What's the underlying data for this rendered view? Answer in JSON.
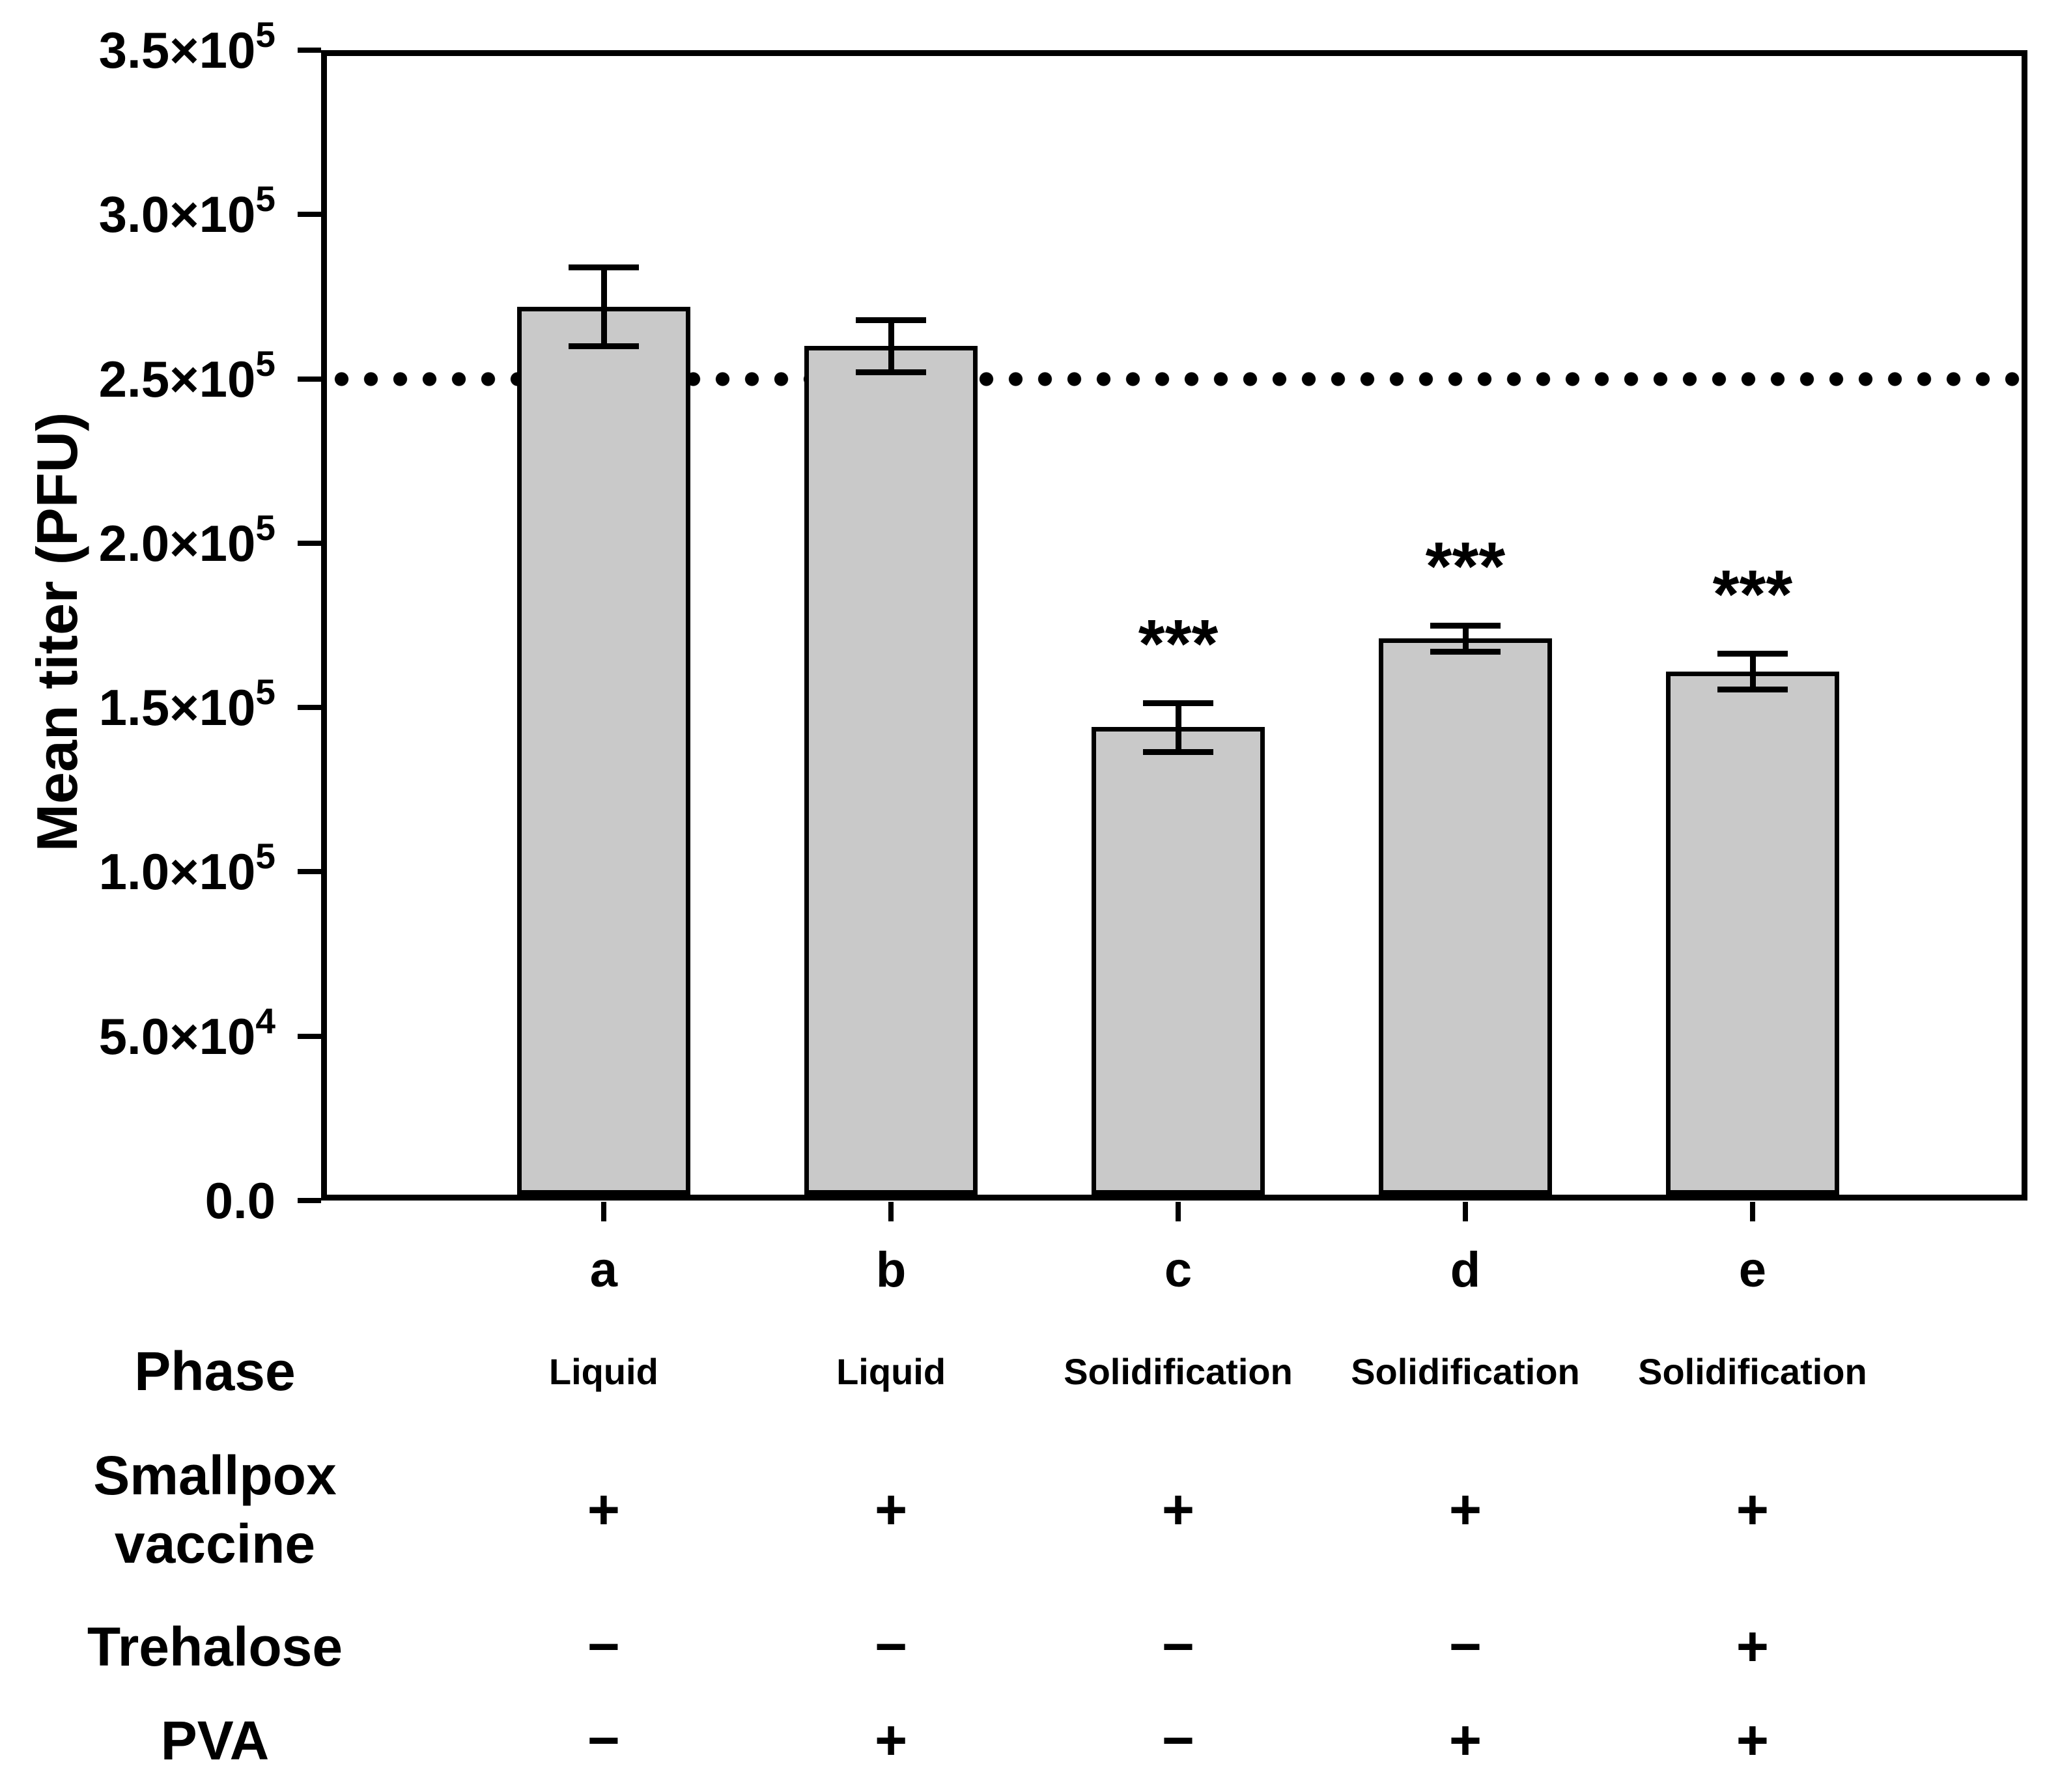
{
  "chart_data": {
    "type": "bar",
    "title": "",
    "ylabel": "Mean titer (PFU)",
    "xlabel": "",
    "ylim": [
      0,
      350000
    ],
    "grid": false,
    "legend_position": "none",
    "yticks": [
      {
        "value": 0,
        "base": "0.0",
        "sup": ""
      },
      {
        "value": 50000,
        "base": "5.0×10",
        "sup": "4"
      },
      {
        "value": 100000,
        "base": "1.0×10",
        "sup": "5"
      },
      {
        "value": 150000,
        "base": "1.5×10",
        "sup": "5"
      },
      {
        "value": 200000,
        "base": "2.0×10",
        "sup": "5"
      },
      {
        "value": 250000,
        "base": "2.5×10",
        "sup": "5"
      },
      {
        "value": 300000,
        "base": "3.0×10",
        "sup": "5"
      },
      {
        "value": 350000,
        "base": "3.5×10",
        "sup": "5"
      }
    ],
    "reference_line": {
      "value": 250000,
      "style": "dotted"
    },
    "categories": [
      "a",
      "b",
      "c",
      "d",
      "e"
    ],
    "values": [
      272000,
      260000,
      144000,
      171000,
      161000
    ],
    "errors": [
      12000,
      8000,
      7500,
      4000,
      5500
    ],
    "significance": [
      "",
      "",
      "***",
      "***",
      "***"
    ],
    "bar_color": "#c9c9c9",
    "bar_border_color": "#000000",
    "axis_color": "#000000"
  },
  "table": {
    "rows": [
      {
        "label": "Phase",
        "values": [
          "Liquid",
          "Liquid",
          "Solidification",
          "Solidification",
          "Solidification"
        ]
      },
      {
        "label": "Smallpox\nvaccine",
        "values": [
          "+",
          "+",
          "+",
          "+",
          "+"
        ]
      },
      {
        "label": "Trehalose",
        "values": [
          "−",
          "−",
          "−",
          "−",
          "+"
        ]
      },
      {
        "label": "PVA",
        "values": [
          "−",
          "+",
          "−",
          "+",
          "+"
        ]
      }
    ]
  }
}
